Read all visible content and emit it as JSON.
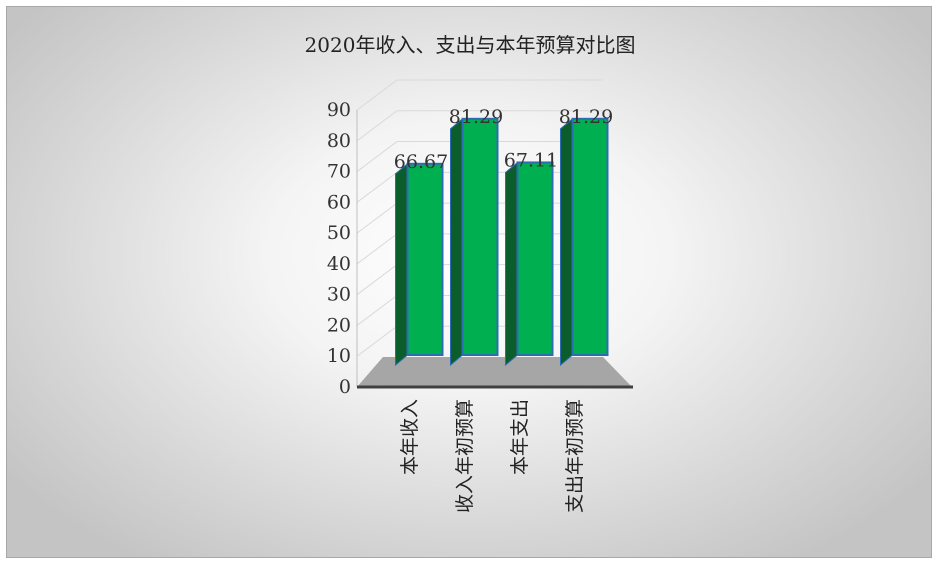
{
  "chart_data": {
    "type": "bar",
    "title": "2020年收入、支出与本年预算对比图",
    "categories": [
      "本年收入",
      "收入年初预算",
      "本年支出",
      "支出年初预算"
    ],
    "values": [
      66.67,
      81.29,
      67.11,
      81.29
    ],
    "data_labels": [
      "66.67",
      "81.29",
      "67.11",
      "81.29"
    ],
    "ylim": [
      0,
      90
    ],
    "yticks": [
      0,
      10,
      20,
      30,
      40,
      50,
      60,
      70,
      80,
      90
    ],
    "xlabel": "",
    "ylabel": "",
    "grid": true,
    "legend": "none",
    "style": "3d-column"
  },
  "colors": {
    "bar_front": "#00b050",
    "bar_side": "#0b5e2c",
    "bar_top": "#15a84a",
    "bar_edge": "#2e6bb5",
    "floor": "#a6a6a6",
    "gridline": "#d9d9d9"
  }
}
